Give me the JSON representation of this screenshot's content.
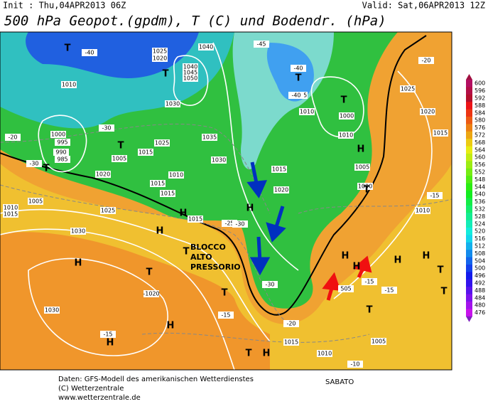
{
  "header": {
    "init": "Init : Thu,04APR2013 06Z",
    "valid": "Valid: Sat,06APR2013 12Z",
    "title": "500 hPa Geopot.(gpdm), T (C) und Bodendr. (hPa)"
  },
  "map": {
    "labels": [
      "1010",
      "1025",
      "1020",
      "1040",
      "1040",
      "1045",
      "1050",
      "1030",
      "1000",
      "995",
      "990",
      "985",
      "1005",
      "1015",
      "1025",
      "1035",
      "1030",
      "1010",
      "1015",
      "1015",
      "1020",
      "1005",
      "1010",
      "1015",
      "1025",
      "1030",
      "1015",
      "1015",
      "1020",
      "1005",
      "1010",
      "1000",
      "1010",
      "1005",
      "1000",
      "1025",
      "1020",
      "1015",
      "1010",
      "-1020",
      "1030",
      "1005",
      "1010",
      "1015",
      "-40",
      "-45",
      "-40",
      "-40",
      "-30",
      "-30",
      "-20",
      "-25",
      "-30",
      "-30",
      "-15",
      "-15",
      "-15",
      "-15",
      "-20",
      "-15",
      "-20",
      "-10",
      "505"
    ],
    "letters": [
      "T",
      "T",
      "T",
      "T",
      "T",
      "T",
      "T",
      "H",
      "H",
      "H",
      "H",
      "H",
      "H",
      "H",
      "H",
      "H",
      "T",
      "T",
      "T",
      "T",
      "T",
      "T",
      "T",
      "H",
      "H",
      "H"
    ],
    "annotation": [
      "BLOCCO",
      "ALTO",
      "PRESSORIO"
    ]
  },
  "colorbar": {
    "levels": [
      600,
      596,
      592,
      588,
      584,
      580,
      576,
      572,
      568,
      564,
      560,
      556,
      552,
      548,
      544,
      540,
      536,
      532,
      528,
      524,
      520,
      516,
      512,
      508,
      504,
      500,
      496,
      492,
      488,
      484,
      480,
      476
    ]
  },
  "footer": {
    "lines": [
      "Daten: GFS-Modell des amerikanischen Wetterdienstes",
      "(C) Wetterzentrale",
      "www.wetterzentrale.de"
    ],
    "note": "SABATO"
  }
}
